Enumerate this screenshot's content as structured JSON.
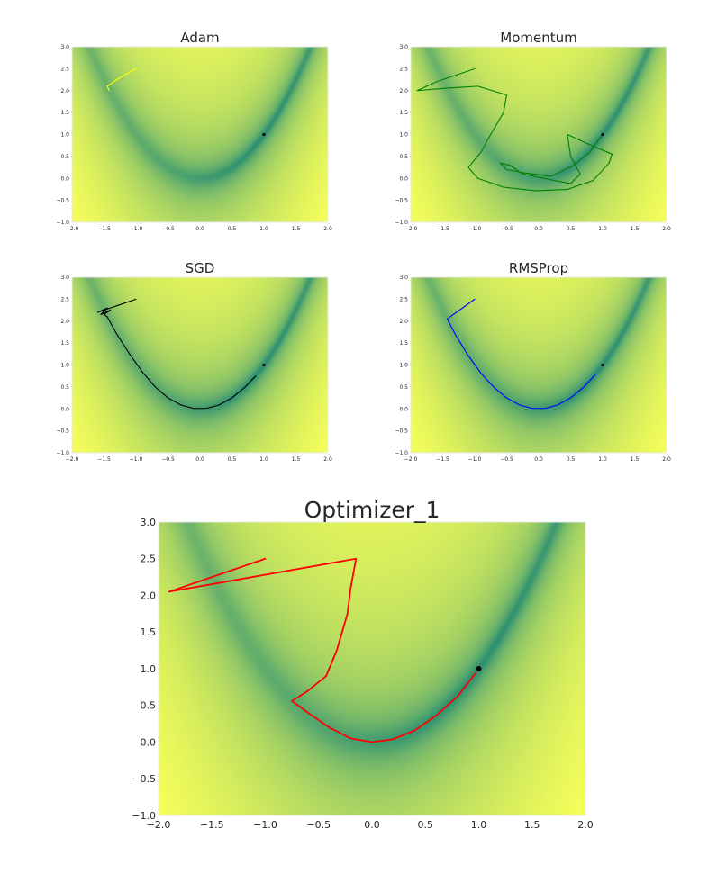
{
  "colors": {
    "valley": "#2a8f73",
    "high": "#f7ff59",
    "minimum_marker": "#000000"
  },
  "chart_data": [
    {
      "type": "line",
      "title": "Adam",
      "xlim": [
        -2.0,
        2.0
      ],
      "ylim": [
        -1.0,
        3.0
      ],
      "x_ticks": [
        "−2.0",
        "−1.5",
        "−1.0",
        "−0.5",
        "0.0",
        "0.5",
        "1.0",
        "1.5",
        "2.0"
      ],
      "y_ticks": [
        "3.0",
        "2.5",
        "2.0",
        "1.5",
        "1.0",
        "0.5",
        "0.0",
        "−0.5",
        "−1.0"
      ],
      "grid": false,
      "background": "contour heatmap of Rosenbrock function",
      "minimum": [
        1.0,
        1.0
      ],
      "series": [
        {
          "color": "#ffff00",
          "points": [
            [
              -1.0,
              2.5
            ],
            [
              -1.25,
              2.3
            ],
            [
              -1.45,
              2.1
            ],
            [
              -1.42,
              2.0
            ]
          ]
        }
      ]
    },
    {
      "type": "line",
      "title": "Momentum",
      "xlim": [
        -2.0,
        2.0
      ],
      "ylim": [
        -1.0,
        3.0
      ],
      "x_ticks": [
        "−2.0",
        "−1.5",
        "−1.0",
        "−0.5",
        "0.0",
        "0.5",
        "1.0",
        "1.5",
        "2.0"
      ],
      "y_ticks": [
        "3.0",
        "2.5",
        "2.0",
        "1.5",
        "1.0",
        "0.5",
        "0.0",
        "−0.5",
        "−1.0"
      ],
      "grid": false,
      "background": "contour heatmap of Rosenbrock function",
      "minimum": [
        1.0,
        1.0
      ],
      "series": [
        {
          "color": "#008000",
          "points": [
            [
              -1.0,
              2.5
            ],
            [
              -1.6,
              2.2
            ],
            [
              -1.9,
              2.0
            ],
            [
              -1.5,
              2.05
            ],
            [
              -0.95,
              2.1
            ],
            [
              -0.5,
              1.9
            ],
            [
              -0.55,
              1.5
            ],
            [
              -0.75,
              1.0
            ],
            [
              -0.9,
              0.6
            ],
            [
              -1.1,
              0.25
            ],
            [
              -0.95,
              0.0
            ],
            [
              -0.55,
              -0.2
            ],
            [
              -0.05,
              -0.28
            ],
            [
              0.45,
              -0.25
            ],
            [
              0.85,
              -0.05
            ],
            [
              1.1,
              0.35
            ],
            [
              1.15,
              0.55
            ],
            [
              0.75,
              0.8
            ],
            [
              0.45,
              1.0
            ],
            [
              0.5,
              0.5
            ],
            [
              0.65,
              0.1
            ],
            [
              0.5,
              -0.12
            ],
            [
              0.15,
              -0.02
            ],
            [
              -0.25,
              0.1
            ],
            [
              -0.45,
              0.3
            ],
            [
              -0.6,
              0.35
            ],
            [
              -0.5,
              0.2
            ],
            [
              -0.2,
              0.12
            ],
            [
              0.2,
              0.05
            ],
            [
              0.55,
              0.3
            ],
            [
              0.8,
              0.6
            ],
            [
              0.95,
              0.9
            ],
            [
              1.0,
              1.0
            ]
          ]
        }
      ]
    },
    {
      "type": "line",
      "title": "SGD",
      "xlim": [
        -2.0,
        2.0
      ],
      "ylim": [
        -1.0,
        3.0
      ],
      "x_ticks": [
        "−2.0",
        "−1.5",
        "−1.0",
        "−0.5",
        "0.0",
        "0.5",
        "1.0",
        "1.5",
        "2.0"
      ],
      "y_ticks": [
        "3.0",
        "2.5",
        "2.0",
        "1.5",
        "1.0",
        "0.5",
        "0.0",
        "−0.5",
        "−1.0"
      ],
      "grid": false,
      "background": "contour heatmap of Rosenbrock function",
      "minimum": [
        1.0,
        1.0
      ],
      "series": [
        {
          "color": "#000000",
          "points": [
            [
              -1.0,
              2.5
            ],
            [
              -1.6,
              2.2
            ],
            [
              -1.45,
              2.3
            ],
            [
              -1.55,
              2.15
            ],
            [
              -1.4,
              2.25
            ],
            [
              -1.5,
              2.15
            ],
            [
              -1.45,
              2.1
            ],
            [
              -1.3,
              1.7
            ],
            [
              -1.1,
              1.25
            ],
            [
              -0.9,
              0.84
            ],
            [
              -0.7,
              0.5
            ],
            [
              -0.5,
              0.25
            ],
            [
              -0.3,
              0.09
            ],
            [
              -0.1,
              0.01
            ],
            [
              0.1,
              0.01
            ],
            [
              0.3,
              0.09
            ],
            [
              0.5,
              0.25
            ],
            [
              0.7,
              0.49
            ],
            [
              0.87,
              0.75
            ]
          ]
        }
      ]
    },
    {
      "type": "line",
      "title": "RMSProp",
      "xlim": [
        -2.0,
        2.0
      ],
      "ylim": [
        -1.0,
        3.0
      ],
      "x_ticks": [
        "−2.0",
        "−1.5",
        "−1.0",
        "−0.5",
        "0.0",
        "0.5",
        "1.0",
        "1.5",
        "2.0"
      ],
      "y_ticks": [
        "3.0",
        "2.5",
        "2.0",
        "1.5",
        "1.0",
        "0.5",
        "0.0",
        "−0.5",
        "−1.0"
      ],
      "grid": false,
      "background": "contour heatmap of Rosenbrock function",
      "minimum": [
        1.0,
        1.0
      ],
      "series": [
        {
          "color": "#0000ff",
          "points": [
            [
              -1.0,
              2.5
            ],
            [
              -1.43,
              2.05
            ],
            [
              -1.3,
              1.69
            ],
            [
              -1.1,
              1.21
            ],
            [
              -0.9,
              0.81
            ],
            [
              -0.7,
              0.49
            ],
            [
              -0.5,
              0.25
            ],
            [
              -0.3,
              0.09
            ],
            [
              -0.1,
              0.01
            ],
            [
              0.1,
              0.01
            ],
            [
              0.3,
              0.09
            ],
            [
              0.5,
              0.25
            ],
            [
              0.7,
              0.49
            ],
            [
              0.88,
              0.77
            ]
          ]
        }
      ]
    },
    {
      "type": "line",
      "title": "Optimizer_1",
      "xlim": [
        -2.0,
        2.0
      ],
      "ylim": [
        -1.0,
        3.0
      ],
      "x_ticks": [
        "−2.0",
        "−1.5",
        "−1.0",
        "−0.5",
        "0.0",
        "0.5",
        "1.0",
        "1.5",
        "2.0"
      ],
      "y_ticks": [
        "3.0",
        "2.5",
        "2.0",
        "1.5",
        "1.0",
        "0.5",
        "0.0",
        "−0.5",
        "−1.0"
      ],
      "grid": false,
      "background": "contour heatmap of Rosenbrock function",
      "minimum": [
        1.0,
        1.0
      ],
      "series": [
        {
          "color": "#ff0000",
          "points": [
            [
              -1.0,
              2.5
            ],
            [
              -1.9,
              2.05
            ],
            [
              -0.15,
              2.5
            ],
            [
              -0.2,
              2.1
            ],
            [
              -0.23,
              1.75
            ],
            [
              -0.33,
              1.25
            ],
            [
              -0.43,
              0.9
            ],
            [
              -0.6,
              0.7
            ],
            [
              -0.75,
              0.56
            ],
            [
              -0.6,
              0.4
            ],
            [
              -0.4,
              0.2
            ],
            [
              -0.2,
              0.05
            ],
            [
              0.0,
              0.0
            ],
            [
              0.2,
              0.04
            ],
            [
              0.4,
              0.16
            ],
            [
              0.6,
              0.36
            ],
            [
              0.8,
              0.62
            ],
            [
              0.97,
              0.94
            ]
          ]
        }
      ]
    }
  ]
}
